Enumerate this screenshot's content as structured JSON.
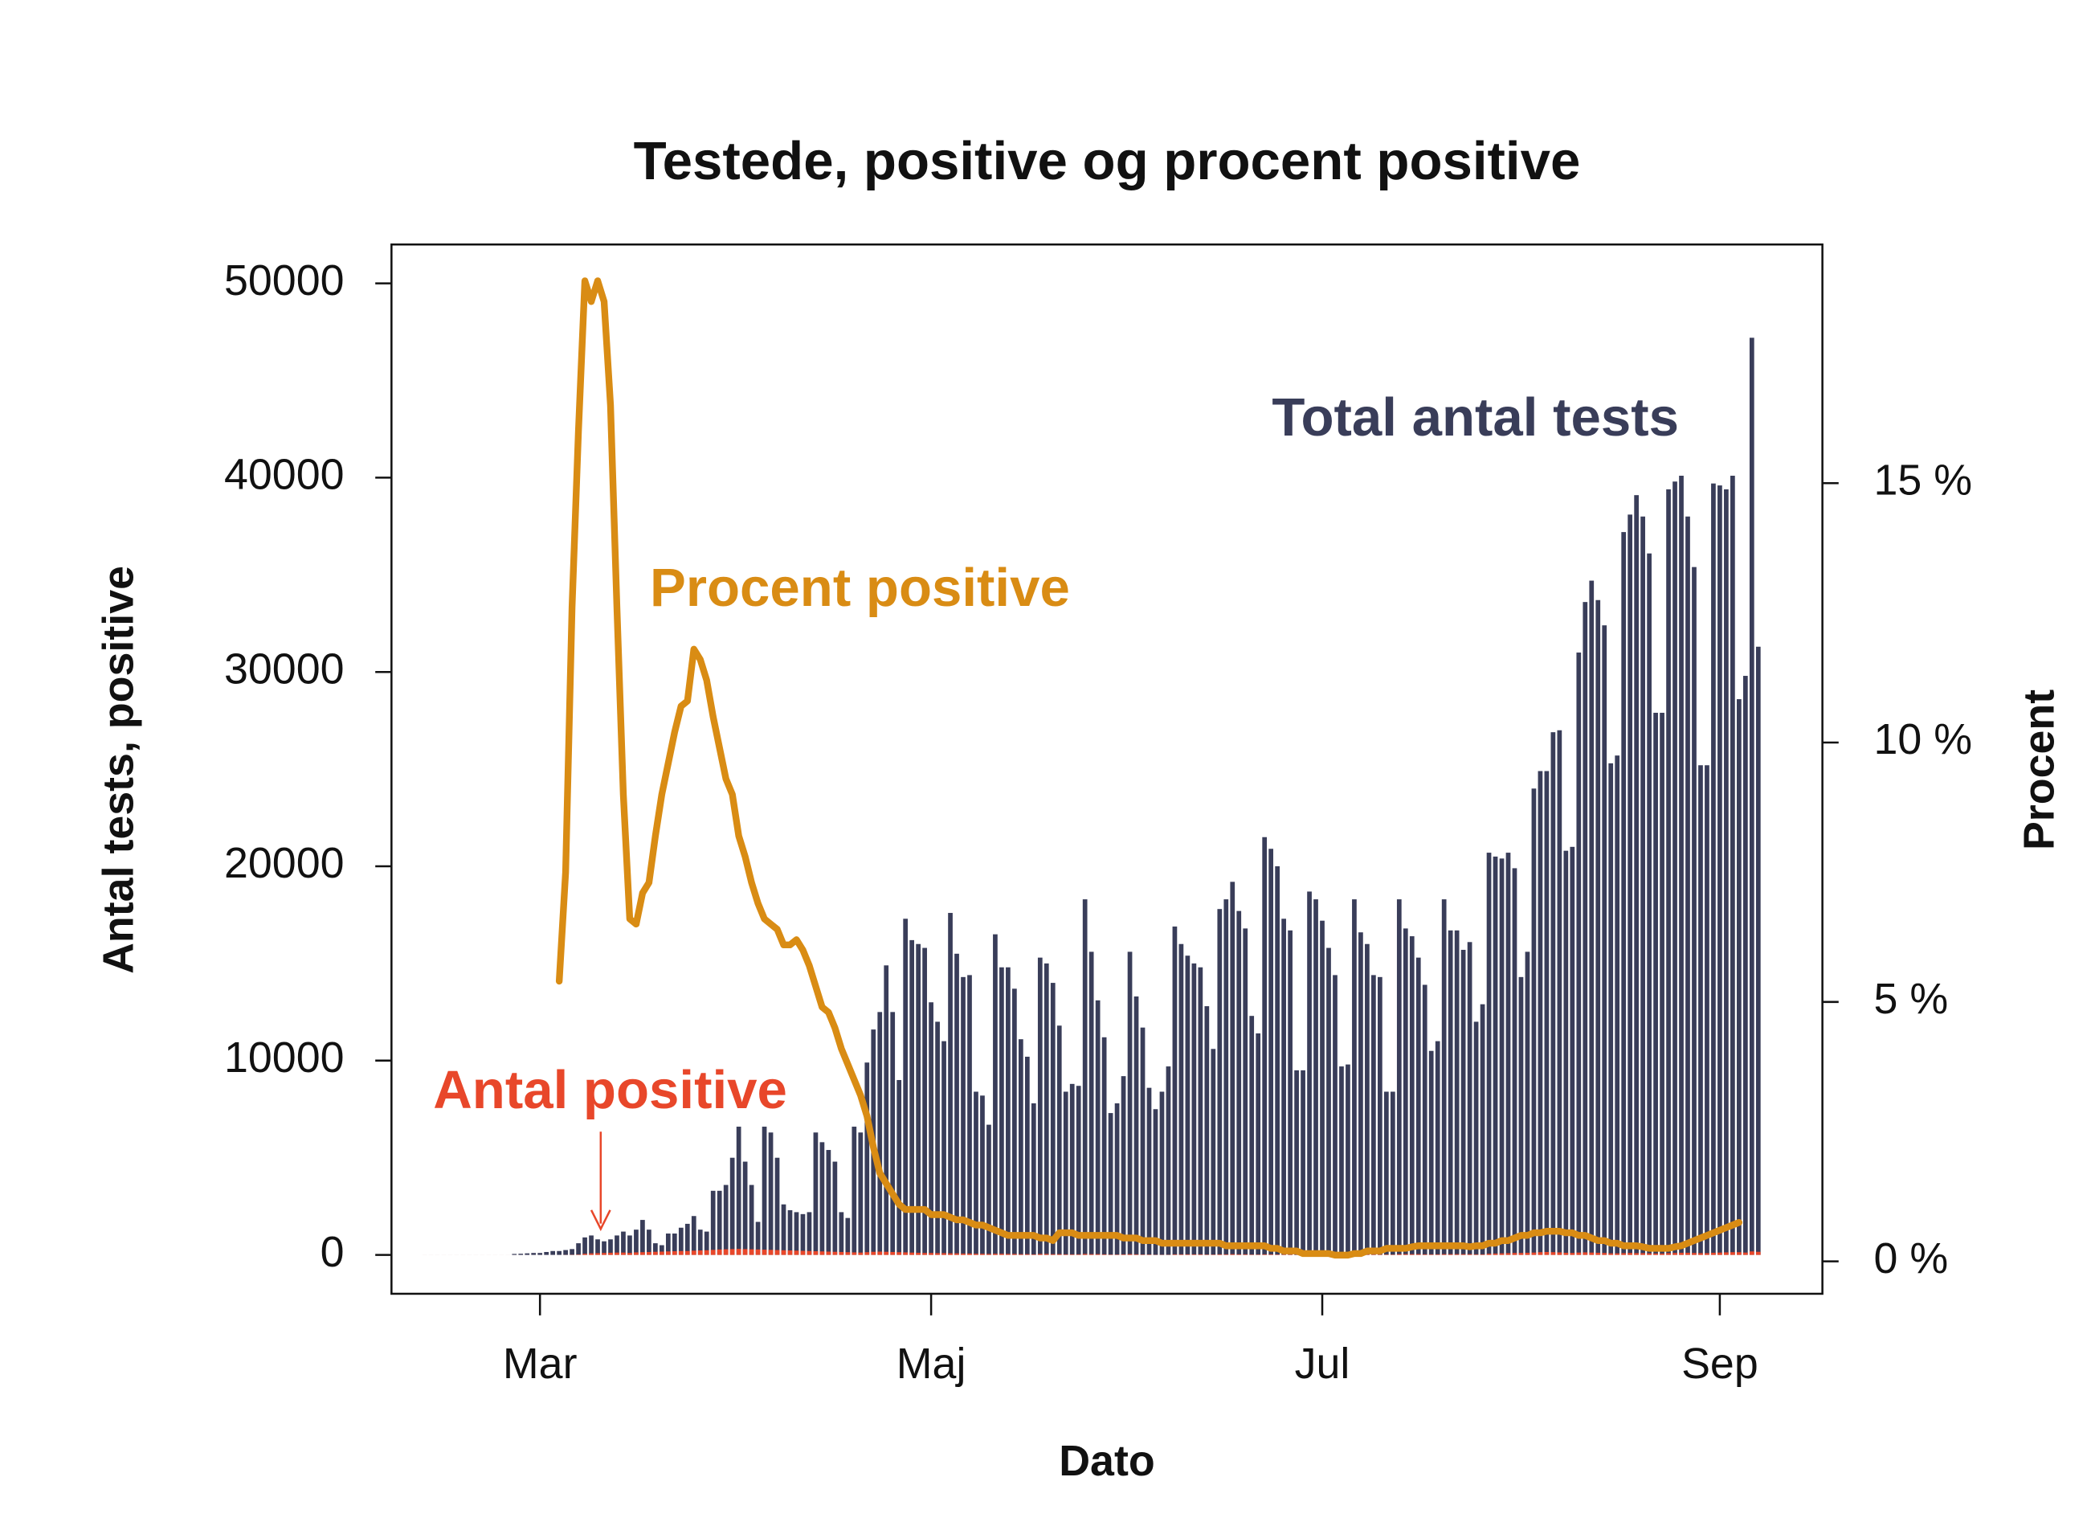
{
  "chart_data": {
    "type": "bar",
    "title": "Testede, positive og procent positive",
    "x_label": "Dato",
    "y_label": "Antal tests, positive",
    "y2_label": "Procent",
    "categories": [
      null,
      null,
      null,
      null,
      null,
      null,
      null,
      null,
      null,
      null,
      null,
      null,
      null,
      null,
      null,
      null,
      null,
      null,
      "Mar",
      null,
      null,
      null,
      null,
      null,
      null,
      null,
      null,
      null,
      null,
      null,
      null,
      null,
      null,
      null,
      null,
      null,
      null,
      null,
      null,
      null,
      null,
      null,
      null,
      null,
      null,
      null,
      null,
      null,
      null,
      null,
      null,
      null,
      null,
      null,
      null,
      null,
      null,
      null,
      null,
      null,
      null,
      null,
      null,
      null,
      null,
      null,
      null,
      null,
      null,
      null,
      null,
      null,
      null,
      null,
      null,
      null,
      null,
      null,
      null,
      "Maj",
      null,
      null,
      null,
      null,
      null,
      null,
      null,
      null,
      null,
      null,
      null,
      null,
      null,
      null,
      null,
      null,
      null,
      null,
      null,
      null,
      null,
      null,
      null,
      null,
      null,
      null,
      null,
      null,
      null,
      null,
      null,
      null,
      null,
      null,
      null,
      null,
      null,
      null,
      null,
      null,
      null,
      null,
      null,
      null,
      null,
      null,
      null,
      null,
      null,
      null,
      null,
      null,
      null,
      null,
      null,
      null,
      null,
      null,
      null,
      null,
      "Jul",
      null,
      null,
      null,
      null,
      null,
      null,
      null,
      null,
      null,
      null,
      null,
      null,
      null,
      null,
      null,
      null,
      null,
      null,
      null,
      null,
      null,
      null,
      null,
      null,
      null,
      null,
      null,
      null,
      null,
      null,
      null,
      null,
      null,
      null,
      null,
      null,
      null,
      null,
      null,
      null,
      null,
      null,
      null,
      null,
      null,
      null,
      null,
      null,
      null,
      null,
      null,
      null,
      null,
      null,
      null,
      null,
      null,
      null,
      null,
      null,
      null,
      "Sep",
      null,
      null,
      null,
      null,
      null,
      null
    ],
    "series": [
      {
        "name": "Total antal tests",
        "type": "bar",
        "color": "#393d59",
        "values": [
          0,
          0,
          0,
          0,
          0,
          0,
          0,
          0,
          0,
          0,
          0,
          0,
          0,
          0,
          50,
          60,
          80,
          100,
          100,
          150,
          200,
          200,
          250,
          300,
          600,
          900,
          1000,
          800,
          700,
          800,
          1000,
          1200,
          1000,
          1300,
          1800,
          1300,
          600,
          500,
          1100,
          1100,
          1400,
          1600,
          2000,
          1300,
          1200,
          3300,
          3300,
          3600,
          5000,
          6600,
          4800,
          3600,
          1700,
          6600,
          6300,
          5000,
          2600,
          2300,
          2200,
          2100,
          2200,
          6300,
          5800,
          5400,
          4800,
          2200,
          1900,
          6600,
          6300,
          9900,
          11600,
          12500,
          14900,
          12500,
          9000,
          17300,
          16200,
          16000,
          15800,
          13000,
          12000,
          11000,
          17600,
          15500,
          14300,
          14400,
          8400,
          8200,
          6700,
          16500,
          14800,
          14800,
          13700,
          11100,
          10200,
          7800,
          15300,
          15000,
          14000,
          11800,
          8400,
          8800,
          8700,
          18300,
          15600,
          13100,
          11200,
          7300,
          7800,
          9200,
          15600,
          13300,
          11700,
          8600,
          7500,
          8400,
          9700,
          16900,
          16000,
          15400,
          15000,
          14800,
          12800,
          10600,
          17800,
          18300,
          19200,
          17700,
          16800,
          12300,
          11400,
          21500,
          20900,
          20000,
          17300,
          16700,
          9500,
          9500,
          18700,
          18300,
          17200,
          15800,
          14400,
          9700,
          9800,
          18300,
          16600,
          16000,
          14400,
          14300,
          8400,
          8400,
          18300,
          16800,
          16400,
          15300,
          13900,
          10500,
          11000,
          18300,
          16700,
          16700,
          15700,
          16100,
          12000,
          12900,
          20700,
          20500,
          20400,
          20700,
          19900,
          14300,
          15600,
          24000,
          24900,
          24900,
          26900,
          27000,
          20800,
          21000,
          31000,
          33600,
          34700,
          33700,
          32400,
          25300,
          25700,
          37200,
          38100,
          39100,
          38000,
          36100,
          27900,
          27900,
          39400,
          39800,
          40100,
          38000,
          35400,
          25200,
          25200,
          39700,
          39600,
          39400,
          40100,
          28600,
          29800,
          47200,
          31300
        ]
      },
      {
        "name": "Antal positive",
        "type": "bar",
        "color": "#e8472a",
        "values": [
          0,
          0,
          0,
          0,
          0,
          0,
          0,
          0,
          0,
          0,
          0,
          0,
          0,
          0,
          0,
          0,
          0,
          0,
          0,
          0,
          0,
          0,
          5,
          10,
          20,
          60,
          80,
          90,
          100,
          110,
          120,
          120,
          100,
          130,
          140,
          150,
          160,
          170,
          180,
          190,
          200,
          200,
          220,
          230,
          240,
          260,
          280,
          290,
          300,
          310,
          300,
          290,
          280,
          270,
          260,
          250,
          240,
          230,
          220,
          210,
          200,
          190,
          180,
          170,
          160,
          150,
          140,
          130,
          120,
          140,
          160,
          170,
          160,
          150,
          140,
          130,
          120,
          110,
          100,
          100,
          90,
          90,
          80,
          80,
          70,
          70,
          60,
          60,
          50,
          60,
          60,
          50,
          50,
          40,
          40,
          30,
          50,
          50,
          40,
          40,
          30,
          30,
          30,
          50,
          40,
          40,
          30,
          20,
          20,
          30,
          40,
          30,
          20,
          20,
          10,
          10,
          10,
          30,
          30,
          30,
          30,
          30,
          20,
          20,
          30,
          30,
          40,
          30,
          30,
          20,
          20,
          30,
          30,
          20,
          20,
          20,
          10,
          10,
          20,
          20,
          10,
          10,
          10,
          10,
          10,
          20,
          20,
          20,
          20,
          20,
          20,
          20,
          40,
          40,
          40,
          40,
          30,
          30,
          30,
          40,
          40,
          40,
          40,
          40,
          30,
          30,
          60,
          70,
          80,
          90,
          100,
          100,
          110,
          120,
          140,
          150,
          140,
          130,
          110,
          100,
          120,
          130,
          120,
          110,
          100,
          80,
          80,
          90,
          100,
          90,
          90,
          80,
          70,
          70,
          90,
          100,
          110,
          110,
          100,
          90,
          90,
          110,
          120,
          130,
          140,
          140,
          120,
          180,
          160
        ]
      },
      {
        "name": "Procent positive",
        "type": "line",
        "axis": "y2",
        "color": "#d98c14",
        "values": [
          null,
          null,
          null,
          null,
          null,
          null,
          null,
          null,
          null,
          null,
          null,
          null,
          null,
          null,
          null,
          null,
          null,
          null,
          null,
          null,
          null,
          5.4,
          7.5,
          12.6,
          16,
          18.9,
          18.5,
          18.9,
          18.5,
          16.5,
          12.6,
          9,
          6.6,
          6.5,
          7.1,
          7.3,
          8.2,
          9.0,
          9.6,
          10.2,
          10.7,
          10.8,
          11.8,
          11.6,
          11.2,
          10.5,
          9.9,
          9.3,
          9.0,
          8.2,
          7.8,
          7.3,
          6.9,
          6.6,
          6.5,
          6.4,
          6.1,
          6.1,
          6.2,
          6.0,
          5.7,
          5.3,
          4.9,
          4.8,
          4.5,
          4.1,
          3.8,
          3.5,
          3.2,
          2.8,
          2.2,
          1.7,
          1.5,
          1.3,
          1.1,
          1.0,
          1.0,
          1.0,
          1.0,
          0.9,
          0.9,
          0.9,
          0.85,
          0.8,
          0.8,
          0.75,
          0.7,
          0.7,
          0.65,
          0.6,
          0.55,
          0.5,
          0.5,
          0.5,
          0.5,
          0.5,
          0.45,
          0.45,
          0.4,
          0.55,
          0.55,
          0.55,
          0.5,
          0.5,
          0.5,
          0.5,
          0.5,
          0.5,
          0.5,
          0.45,
          0.45,
          0.45,
          0.4,
          0.4,
          0.4,
          0.35,
          0.35,
          0.35,
          0.35,
          0.35,
          0.35,
          0.35,
          0.35,
          0.35,
          0.35,
          0.3,
          0.3,
          0.3,
          0.3,
          0.3,
          0.3,
          0.3,
          0.25,
          0.25,
          0.2,
          0.2,
          0.2,
          0.15,
          0.15,
          0.15,
          0.15,
          0.15,
          0.12,
          0.12,
          0.12,
          0.15,
          0.15,
          0.2,
          0.2,
          0.2,
          0.25,
          0.25,
          0.25,
          0.25,
          0.28,
          0.3,
          0.3,
          0.3,
          0.3,
          0.3,
          0.3,
          0.3,
          0.3,
          0.28,
          0.3,
          0.3,
          0.35,
          0.35,
          0.4,
          0.4,
          0.45,
          0.5,
          0.5,
          0.55,
          0.55,
          0.58,
          0.58,
          0.58,
          0.55,
          0.55,
          0.5,
          0.5,
          0.45,
          0.4,
          0.4,
          0.35,
          0.35,
          0.3,
          0.3,
          0.3,
          0.28,
          0.25,
          0.25,
          0.25,
          0.25,
          0.28,
          0.3,
          0.35,
          0.4,
          0.45,
          0.5,
          0.55,
          0.6,
          0.65,
          0.7,
          0.75,
          null,
          null,
          null
        ]
      }
    ],
    "ylim": [
      -2000,
      52000
    ],
    "yticks": [
      0,
      10000,
      20000,
      30000,
      40000,
      50000
    ],
    "y2lim": [
      -0.625,
      19.6
    ],
    "y2ticks": [
      {
        "value": 0,
        "label": "0 %"
      },
      {
        "value": 5,
        "label": "5 %"
      },
      {
        "value": 10,
        "label": "10 %"
      },
      {
        "value": 15,
        "label": "15 %"
      }
    ]
  }
}
